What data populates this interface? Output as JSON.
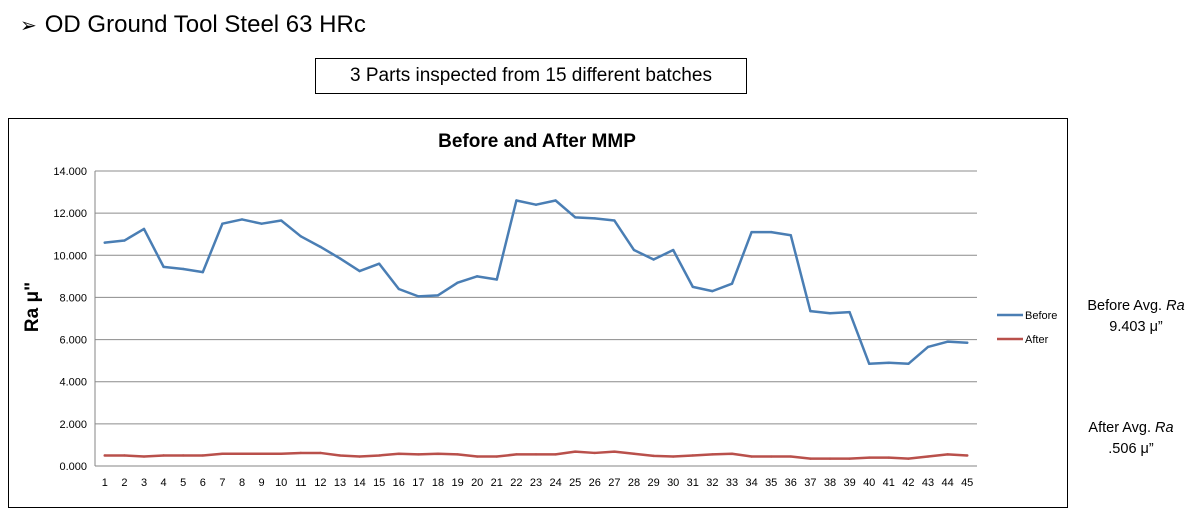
{
  "slide": {
    "bullet": "➢",
    "title": "OD Ground Tool Steel 63 HRc",
    "box_text": "3 Parts inspected from 15 different batches"
  },
  "annotations": {
    "before_label": "Before Avg.",
    "before_unit": "Ra",
    "before_value": "9.403 μ”",
    "after_label": "After Avg.",
    "after_unit": "Ra",
    "after_value": ".506 μ”"
  },
  "chart_data": {
    "type": "line",
    "title": "Before and After MMP",
    "xlabel": "",
    "ylabel": "Ra μ\"",
    "ylim": [
      0,
      14
    ],
    "yticks": [
      "0.000",
      "2.000",
      "4.000",
      "6.000",
      "8.000",
      "10.000",
      "12.000",
      "14.000"
    ],
    "grid": true,
    "legend_position": "right",
    "x": [
      "1",
      "2",
      "3",
      "4",
      "5",
      "6",
      "7",
      "8",
      "9",
      "10",
      "11",
      "12",
      "13",
      "14",
      "15",
      "16",
      "17",
      "18",
      "19",
      "20",
      "21",
      "22",
      "23",
      "24",
      "25",
      "26",
      "27",
      "28",
      "29",
      "30",
      "31",
      "32",
      "33",
      "34",
      "35",
      "36",
      "37",
      "38",
      "39",
      "40",
      "41",
      "42",
      "43",
      "44",
      "45"
    ],
    "series": [
      {
        "name": "Before",
        "color": "#4a7eb4",
        "values": [
          10.6,
          10.7,
          11.25,
          9.45,
          9.35,
          9.2,
          11.5,
          11.7,
          11.5,
          11.65,
          10.9,
          10.4,
          9.85,
          9.25,
          9.6,
          8.4,
          8.05,
          8.1,
          8.7,
          9.0,
          8.85,
          12.6,
          12.4,
          12.6,
          11.8,
          11.75,
          11.65,
          10.25,
          9.8,
          10.25,
          8.5,
          8.3,
          8.65,
          11.1,
          11.1,
          10.95,
          7.35,
          7.25,
          7.3,
          4.85,
          4.9,
          4.85,
          5.65,
          5.9,
          5.85
        ]
      },
      {
        "name": "After",
        "color": "#b9504b",
        "values": [
          0.5,
          0.5,
          0.45,
          0.5,
          0.5,
          0.5,
          0.58,
          0.58,
          0.58,
          0.58,
          0.62,
          0.62,
          0.5,
          0.45,
          0.5,
          0.58,
          0.55,
          0.58,
          0.55,
          0.45,
          0.45,
          0.55,
          0.55,
          0.55,
          0.68,
          0.62,
          0.68,
          0.58,
          0.48,
          0.45,
          0.5,
          0.55,
          0.58,
          0.45,
          0.45,
          0.45,
          0.35,
          0.35,
          0.35,
          0.4,
          0.4,
          0.35,
          0.45,
          0.55,
          0.5
        ]
      }
    ]
  }
}
